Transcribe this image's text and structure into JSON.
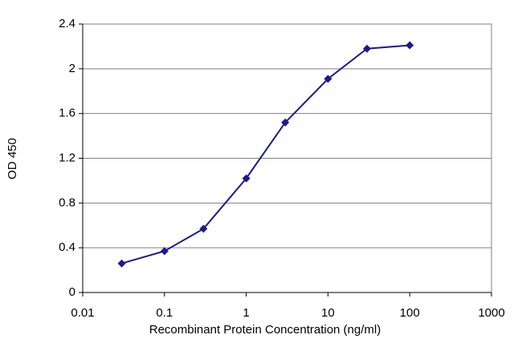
{
  "chart_data": {
    "type": "line",
    "xlabel": "Recombinant Protein Concentration (ng/ml)",
    "ylabel": "OD 450",
    "x": [
      0.03,
      0.1,
      0.3,
      1,
      3,
      10,
      30,
      100
    ],
    "series": [
      {
        "color": "#1a1a8c",
        "values": [
          0.26,
          0.37,
          0.57,
          1.02,
          1.52,
          1.91,
          2.18,
          2.21
        ]
      }
    ],
    "xlim": [
      0.01,
      1000
    ],
    "xticks": [
      0.01,
      0.1,
      1,
      10,
      100,
      1000
    ],
    "xscale": "log",
    "ylim": [
      0,
      2.4
    ],
    "yticks": [
      0,
      0.4,
      0.8,
      1.2,
      1.6,
      2,
      2.4
    ],
    "grid": true
  }
}
